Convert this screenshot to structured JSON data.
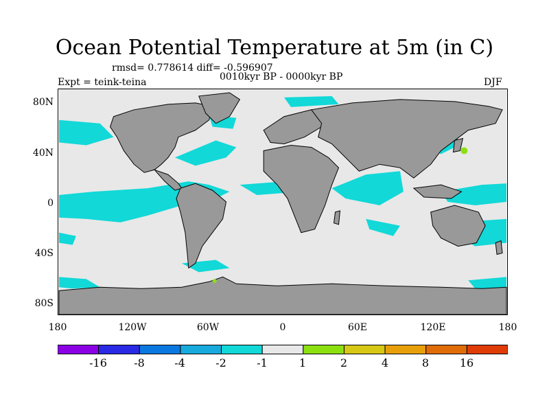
{
  "title": "Ocean Potential Temperature at 5m (in C)",
  "stats": "rmsd= 0.778614 diff= -0.596907",
  "period": "0010kyr BP - 0000kyr BP",
  "experiment": "Expt = teink-teina",
  "season": "DJF",
  "y_ticks": [
    "80N",
    "40N",
    "0",
    "40S",
    "80S"
  ],
  "x_ticks": [
    "180",
    "120W",
    "60W",
    "0",
    "60E",
    "120E",
    "180"
  ],
  "colorbar": {
    "colors": [
      "#8c00e6",
      "#2a2ae6",
      "#0a78e0",
      "#18aadc",
      "#12d8d8",
      "#e8e8e8",
      "#8ce010",
      "#d6c814",
      "#e8a00a",
      "#e06c08",
      "#e03c08"
    ],
    "labels": [
      "-16",
      "-8",
      "-4",
      "-2",
      "-1",
      "1",
      "2",
      "4",
      "8",
      "16"
    ]
  },
  "map_colors": {
    "ocean": "#e8e8e8",
    "land": "#999999",
    "anomaly": "#12d8d8",
    "warm": "#8ce010"
  }
}
